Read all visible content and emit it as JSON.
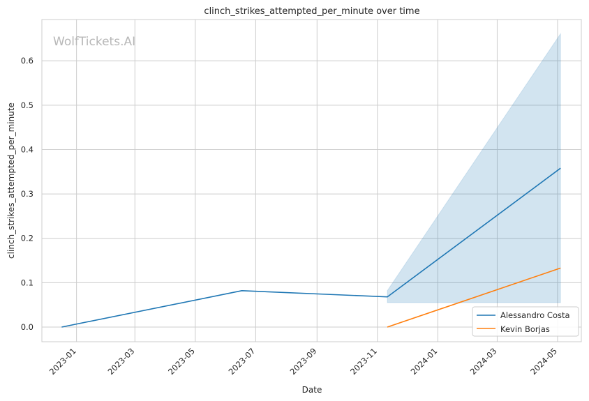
{
  "chart_data": {
    "type": "line",
    "title": "clinch_strikes_attempted_per_minute over time",
    "xlabel": "Date",
    "ylabel": "clinch_strikes_attempted_per_minute",
    "watermark": "WolfTickets.AI",
    "x_ticks": [
      "2023-01",
      "2023-03",
      "2023-05",
      "2023-07",
      "2023-09",
      "2023-11",
      "2024-01",
      "2024-03",
      "2024-05"
    ],
    "y_ticks": [
      "0.0",
      "0.1",
      "0.2",
      "0.3",
      "0.4",
      "0.5",
      "0.6"
    ],
    "xlim": [
      "2022-11-27",
      "2024-05-25"
    ],
    "ylim": [
      -0.033,
      0.693
    ],
    "grid": true,
    "legend_position": "lower right",
    "series": [
      {
        "name": "Alessandro Costa",
        "color": "#1f77b4",
        "points": [
          {
            "date": "2022-12-17",
            "y": 0.0
          },
          {
            "date": "2023-06-17",
            "y": 0.082
          },
          {
            "date": "2023-11-11",
            "y": 0.068
          },
          {
            "date": "2024-05-04",
            "y": 0.358
          }
        ],
        "band": [
          {
            "date": "2023-11-11",
            "low": 0.055,
            "high": 0.082
          },
          {
            "date": "2024-05-04",
            "low": 0.055,
            "high": 0.661
          }
        ]
      },
      {
        "name": "Kevin Borjas",
        "color": "#ff7f0e",
        "points": [
          {
            "date": "2023-11-11",
            "y": 0.0
          },
          {
            "date": "2024-05-04",
            "y": 0.133
          }
        ]
      }
    ]
  }
}
